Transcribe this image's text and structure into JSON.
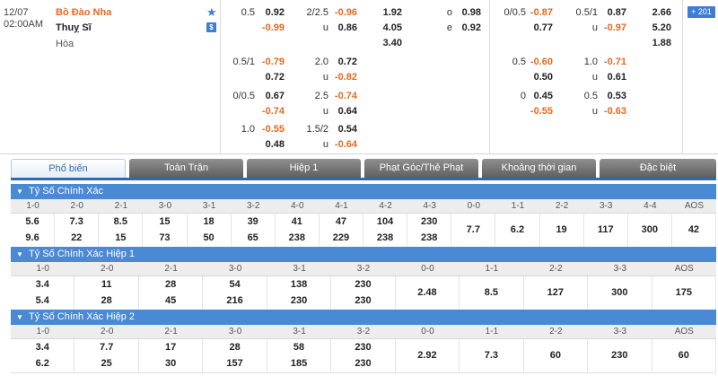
{
  "match": {
    "date": "12/07",
    "time": "02:00AM",
    "home_team": "Bồ Đào Nha",
    "away_team": "Thuỵ Sĩ",
    "draw_label": "Hòa",
    "more_badge": "201",
    "fulltime": {
      "handicap": [
        {
          "line": "0.5",
          "home": "0.92",
          "away": "-0.99"
        },
        {
          "line": "0.5/1",
          "home": "-0.79",
          "away": "0.72"
        },
        {
          "line": "0/0.5",
          "home": "0.67",
          "away": "-0.74"
        },
        {
          "line": "1.0",
          "home": "-0.55",
          "away": "0.48"
        }
      ],
      "overunder": [
        {
          "line": "2/2.5",
          "over": "-0.96",
          "under_label": "u",
          "under": "0.86"
        },
        {
          "line": "2.0",
          "over": "0.72",
          "under_label": "u",
          "under": "-0.82"
        },
        {
          "line": "2.5",
          "over": "-0.74",
          "under_label": "u",
          "under": "0.64"
        },
        {
          "line": "1.5/2",
          "over": "0.54",
          "under_label": "u",
          "under": "-0.64"
        }
      ],
      "x12": [
        "1.92",
        "4.05",
        "3.40"
      ],
      "oddeven": [
        {
          "label": "o",
          "value": "0.98"
        },
        {
          "label": "e",
          "value": "0.92"
        }
      ]
    },
    "firsthalf": {
      "handicap": [
        {
          "line": "0/0.5",
          "home": "-0.87",
          "away": "0.77"
        },
        {
          "line": "0.5",
          "home": "-0.60",
          "away": "0.50"
        },
        {
          "line": "0",
          "home": "0.45",
          "away": "-0.55"
        }
      ],
      "overunder": [
        {
          "line": "0.5/1",
          "over": "0.87",
          "under_label": "u",
          "under": "-0.97"
        },
        {
          "line": "1.0",
          "over": "-0.71",
          "under_label": "u",
          "under": "0.61"
        },
        {
          "line": "0.5",
          "over": "0.53",
          "under_label": "u",
          "under": "-0.63"
        }
      ],
      "x12": [
        "2.66",
        "5.20",
        "1.88"
      ]
    },
    "colors": {
      "accent_orange": "#e8691f",
      "brand_blue": "#3b7dd8"
    }
  },
  "tabs": [
    {
      "label": "Phổ biến",
      "active": true
    },
    {
      "label": "Toàn Trận",
      "active": false
    },
    {
      "label": "Hiệp 1",
      "active": false
    },
    {
      "label": "Phạt Góc/Thẻ Phạt",
      "active": false
    },
    {
      "label": "Khoảng thời gian",
      "active": false
    },
    {
      "label": "Đặc biệt",
      "active": false
    }
  ],
  "sections": [
    {
      "title": "Tỷ Số Chính Xác",
      "columns": [
        {
          "h": "1-0",
          "t": "5.6",
          "b": "9.6"
        },
        {
          "h": "2-0",
          "t": "7.3",
          "b": "22"
        },
        {
          "h": "2-1",
          "t": "8.5",
          "b": "15"
        },
        {
          "h": "3-0",
          "t": "15",
          "b": "73"
        },
        {
          "h": "3-1",
          "t": "18",
          "b": "50"
        },
        {
          "h": "3-2",
          "t": "39",
          "b": "65"
        },
        {
          "h": "4-0",
          "t": "41",
          "b": "238"
        },
        {
          "h": "4-1",
          "t": "47",
          "b": "229"
        },
        {
          "h": "4-2",
          "t": "104",
          "b": "238"
        },
        {
          "h": "4-3",
          "t": "230",
          "b": "238"
        },
        {
          "h": "0-0",
          "m": "7.7"
        },
        {
          "h": "1-1",
          "m": "6.2"
        },
        {
          "h": "2-2",
          "m": "19"
        },
        {
          "h": "3-3",
          "m": "117"
        },
        {
          "h": "4-4",
          "m": "300"
        },
        {
          "h": "AOS",
          "m": "42"
        }
      ]
    },
    {
      "title": "Tỷ Số Chính Xác Hiệp 1",
      "columns": [
        {
          "h": "1-0",
          "t": "3.4",
          "b": "5.4"
        },
        {
          "h": "2-0",
          "t": "11",
          "b": "28"
        },
        {
          "h": "2-1",
          "t": "28",
          "b": "45"
        },
        {
          "h": "3-0",
          "t": "54",
          "b": "216"
        },
        {
          "h": "3-1",
          "t": "138",
          "b": "230"
        },
        {
          "h": "3-2",
          "t": "230",
          "b": "230"
        },
        {
          "h": "0-0",
          "m": "2.48"
        },
        {
          "h": "1-1",
          "m": "8.5"
        },
        {
          "h": "2-2",
          "m": "127"
        },
        {
          "h": "3-3",
          "m": "300"
        },
        {
          "h": "AOS",
          "m": "175"
        }
      ]
    },
    {
      "title": "Tỷ Số Chính Xác Hiệp 2",
      "columns": [
        {
          "h": "1-0",
          "t": "3.4",
          "b": "6.2"
        },
        {
          "h": "2-0",
          "t": "7.7",
          "b": "25"
        },
        {
          "h": "2-1",
          "t": "17",
          "b": "30"
        },
        {
          "h": "3-0",
          "t": "28",
          "b": "157"
        },
        {
          "h": "3-1",
          "t": "58",
          "b": "185"
        },
        {
          "h": "3-2",
          "t": "230",
          "b": "230"
        },
        {
          "h": "0-0",
          "m": "2.92"
        },
        {
          "h": "1-1",
          "m": "7.3"
        },
        {
          "h": "2-2",
          "m": "60"
        },
        {
          "h": "3-3",
          "m": "230"
        },
        {
          "h": "AOS",
          "m": "60"
        }
      ]
    }
  ]
}
